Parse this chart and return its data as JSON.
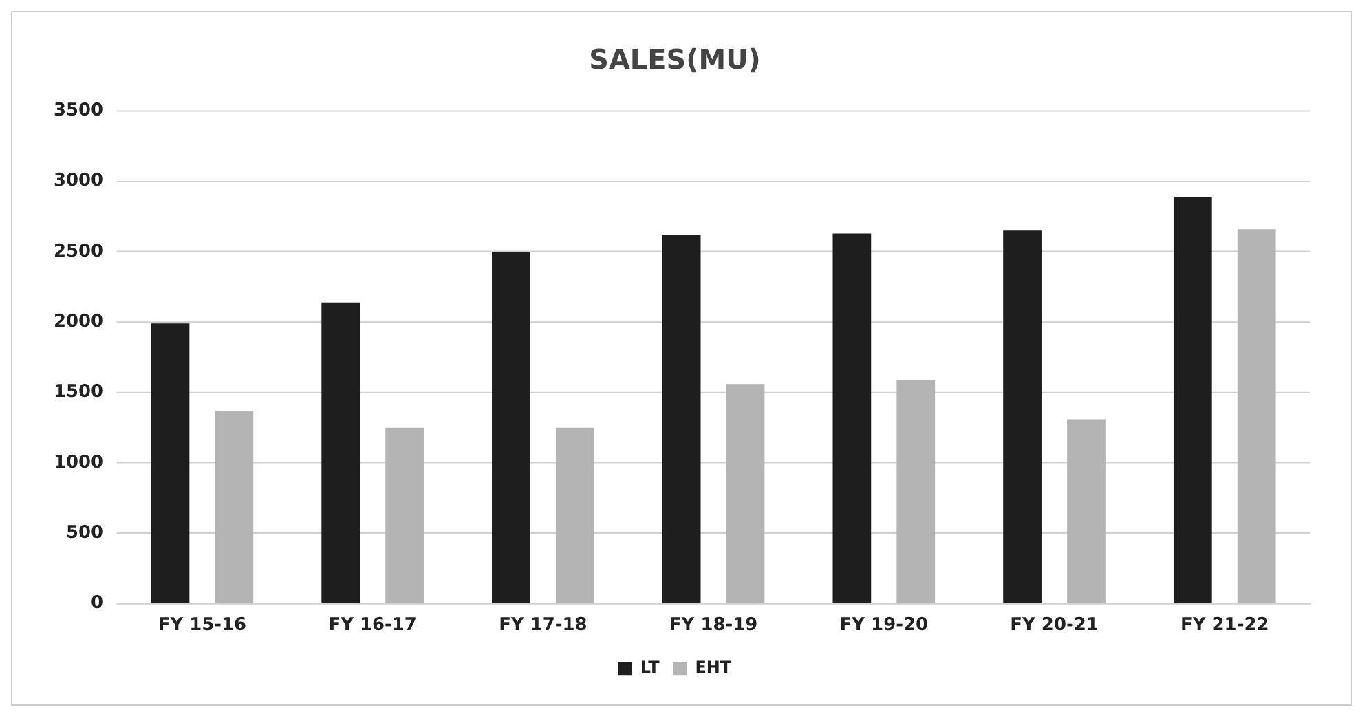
{
  "chart_data": {
    "type": "bar",
    "title": "SALES(MU)",
    "categories": [
      "FY 15-16",
      "FY 16-17",
      "FY 17-18",
      "FY 18-19",
      "FY 19-20",
      "FY 20-21",
      "FY 21-22"
    ],
    "series": [
      {
        "name": "LT",
        "color": "#1e1e1e",
        "values": [
          1990,
          2140,
          2500,
          2620,
          2630,
          2650,
          2890
        ]
      },
      {
        "name": "EHT",
        "color": "#b4b4b4",
        "values": [
          1370,
          1250,
          1250,
          1560,
          1590,
          1310,
          2660
        ]
      }
    ],
    "ylim": [
      0,
      3500
    ],
    "yticks": [
      0,
      500,
      1000,
      1500,
      2000,
      2500,
      3000,
      3500
    ],
    "grid": "y",
    "legend": "bottom"
  }
}
